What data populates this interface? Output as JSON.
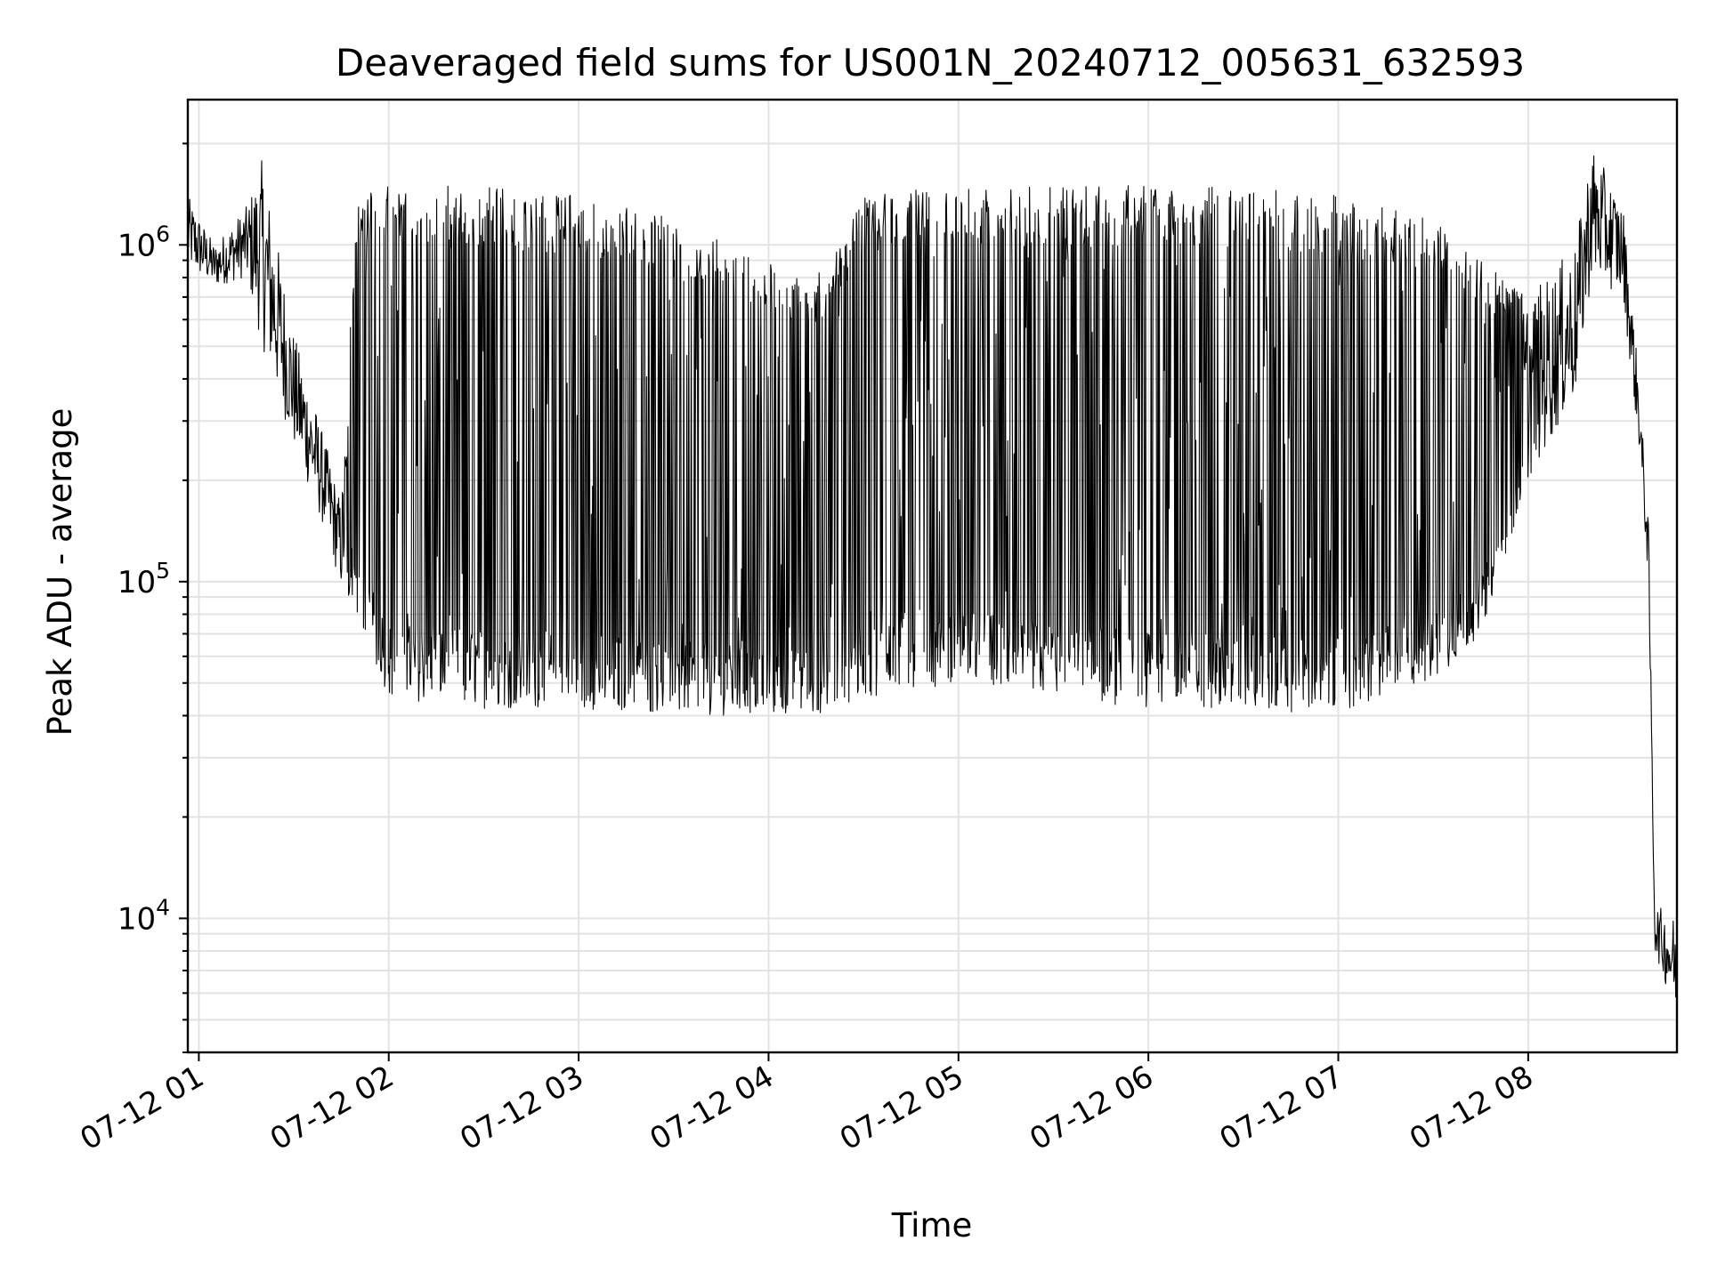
{
  "chart_data": {
    "type": "line",
    "title": "Deaveraged field sums for US001N_20240712_005631_632593",
    "xlabel": "Time",
    "ylabel": "Peak ADU - average",
    "yscale": "log",
    "ylim": [
      4000,
      2700000
    ],
    "xlim": [
      "2024-07-12T00:56:31",
      "2024-07-12T08:47:00"
    ],
    "grid": true,
    "legend": "none",
    "line_color": "#000000",
    "x_ticks": [
      {
        "label": "07-12 01",
        "t": "2024-07-12T01:00:00"
      },
      {
        "label": "07-12 02",
        "t": "2024-07-12T02:00:00"
      },
      {
        "label": "07-12 03",
        "t": "2024-07-12T03:00:00"
      },
      {
        "label": "07-12 04",
        "t": "2024-07-12T04:00:00"
      },
      {
        "label": "07-12 05",
        "t": "2024-07-12T05:00:00"
      },
      {
        "label": "07-12 06",
        "t": "2024-07-12T06:00:00"
      },
      {
        "label": "07-12 07",
        "t": "2024-07-12T07:00:00"
      },
      {
        "label": "07-12 08",
        "t": "2024-07-12T08:00:00"
      }
    ],
    "y_ticks": [
      {
        "base": "10",
        "exp": "4",
        "value": 10000
      },
      {
        "base": "10",
        "exp": "5",
        "value": 100000
      },
      {
        "base": "10",
        "exp": "6",
        "value": 1000000
      }
    ],
    "series": [
      {
        "points": [
          {
            "t": "2024-07-12T00:56:31",
            "lower": 850000,
            "upper": 1400000
          },
          {
            "t": "2024-07-12T01:05:00",
            "lower": 750000,
            "upper": 1000000
          },
          {
            "t": "2024-07-12T01:15:00",
            "lower": 800000,
            "upper": 1300000
          },
          {
            "t": "2024-07-12T01:20:00",
            "lower": 500000,
            "upper": 1800000
          },
          {
            "t": "2024-07-12T01:30:00",
            "lower": 250000,
            "upper": 550000
          },
          {
            "t": "2024-07-12T01:40:00",
            "lower": 140000,
            "upper": 260000
          },
          {
            "t": "2024-07-12T01:45:00",
            "lower": 95000,
            "upper": 170000
          },
          {
            "t": "2024-07-12T01:50:00",
            "lower": 80000,
            "upper": 1400000
          },
          {
            "t": "2024-07-12T02:00:00",
            "lower": 45000,
            "upper": 1500000
          },
          {
            "t": "2024-07-12T02:30:00",
            "lower": 42000,
            "upper": 1500000
          },
          {
            "t": "2024-07-12T03:00:00",
            "lower": 42000,
            "upper": 1400000
          },
          {
            "t": "2024-07-12T03:30:00",
            "lower": 40000,
            "upper": 1200000
          },
          {
            "t": "2024-07-12T04:00:00",
            "lower": 40000,
            "upper": 900000
          },
          {
            "t": "2024-07-12T04:15:00",
            "lower": 40000,
            "upper": 800000
          },
          {
            "t": "2024-07-12T04:30:00",
            "lower": 45000,
            "upper": 1400000
          },
          {
            "t": "2024-07-12T05:00:00",
            "lower": 50000,
            "upper": 1500000
          },
          {
            "t": "2024-07-12T05:30:00",
            "lower": 45000,
            "upper": 1500000
          },
          {
            "t": "2024-07-12T06:00:00",
            "lower": 42000,
            "upper": 1500000
          },
          {
            "t": "2024-07-12T06:30:00",
            "lower": 42000,
            "upper": 1500000
          },
          {
            "t": "2024-07-12T07:00:00",
            "lower": 40000,
            "upper": 1400000
          },
          {
            "t": "2024-07-12T07:30:00",
            "lower": 50000,
            "upper": 1200000
          },
          {
            "t": "2024-07-12T07:45:00",
            "lower": 70000,
            "upper": 900000
          },
          {
            "t": "2024-07-12T08:00:00",
            "lower": 200000,
            "upper": 700000
          },
          {
            "t": "2024-07-12T08:15:00",
            "lower": 350000,
            "upper": 1000000
          },
          {
            "t": "2024-07-12T08:20:00",
            "lower": 800000,
            "upper": 2000000
          },
          {
            "t": "2024-07-12T08:30:00",
            "lower": 700000,
            "upper": 1300000
          },
          {
            "t": "2024-07-12T08:35:00",
            "lower": 250000,
            "upper": 400000
          },
          {
            "t": "2024-07-12T08:38:00",
            "lower": 100000,
            "upper": 150000
          },
          {
            "t": "2024-07-12T08:40:00",
            "lower": 8000,
            "upper": 11000
          },
          {
            "t": "2024-07-12T08:47:00",
            "lower": 5000,
            "upper": 10000
          }
        ]
      }
    ]
  }
}
